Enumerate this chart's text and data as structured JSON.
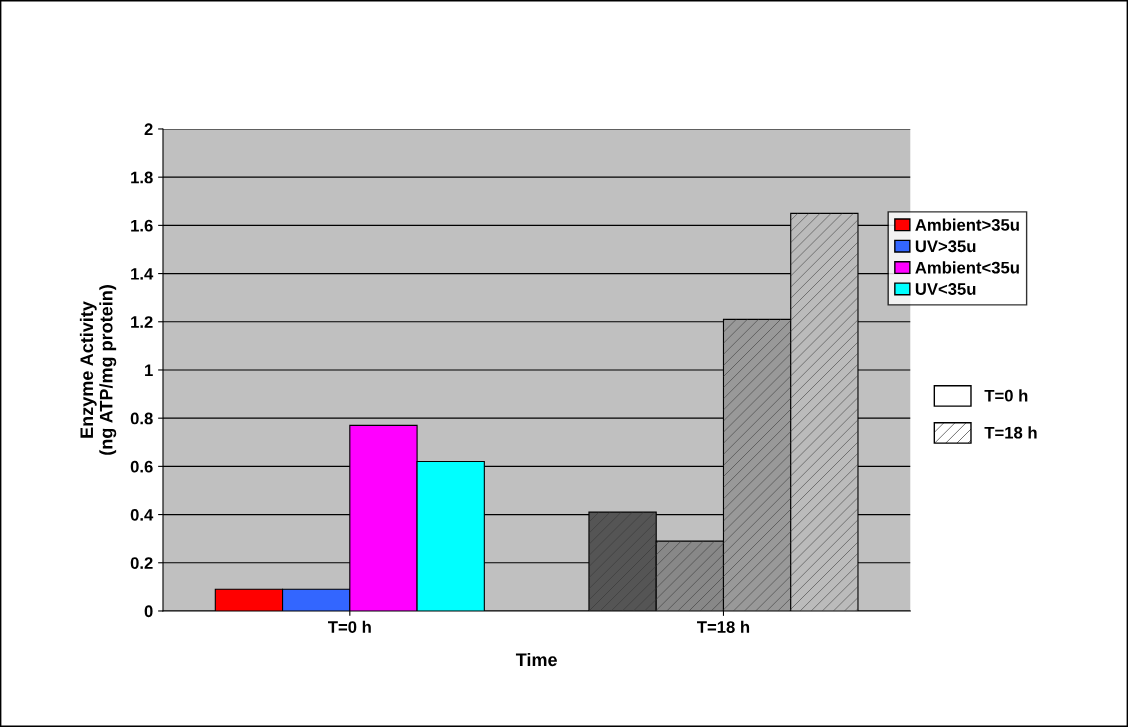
{
  "chart_data": {
    "type": "bar",
    "xlabel": "Time",
    "ylabel": "Enzyme Activity\n(ng ATP/mg protein)",
    "categories": [
      "T=0 h",
      "T=18 h"
    ],
    "series": [
      {
        "name": "Ambient>35u",
        "color": "#ff0000",
        "colors": [
          "#ff0000",
          "#555555"
        ],
        "values": [
          0.09,
          0.41
        ]
      },
      {
        "name": "UV>35u",
        "color": "#3366ff",
        "colors": [
          "#3366ff",
          "#888888"
        ],
        "values": [
          0.09,
          0.29
        ]
      },
      {
        "name": "Ambient<35u",
        "color": "#ff00ff",
        "colors": [
          "#ff00ff",
          "#999999"
        ],
        "values": [
          0.77,
          1.21
        ]
      },
      {
        "name": "UV<35u",
        "color": "#00ffff",
        "colors": [
          "#00ffff",
          "#bbbbbb"
        ],
        "values": [
          0.62,
          1.65
        ]
      }
    ],
    "ylim": [
      0,
      2
    ],
    "yticks": [
      0,
      0.2,
      0.4,
      0.6,
      0.8,
      1,
      1.2,
      1.4,
      1.6,
      1.8,
      2
    ],
    "grid": "y",
    "legend": "right"
  }
}
